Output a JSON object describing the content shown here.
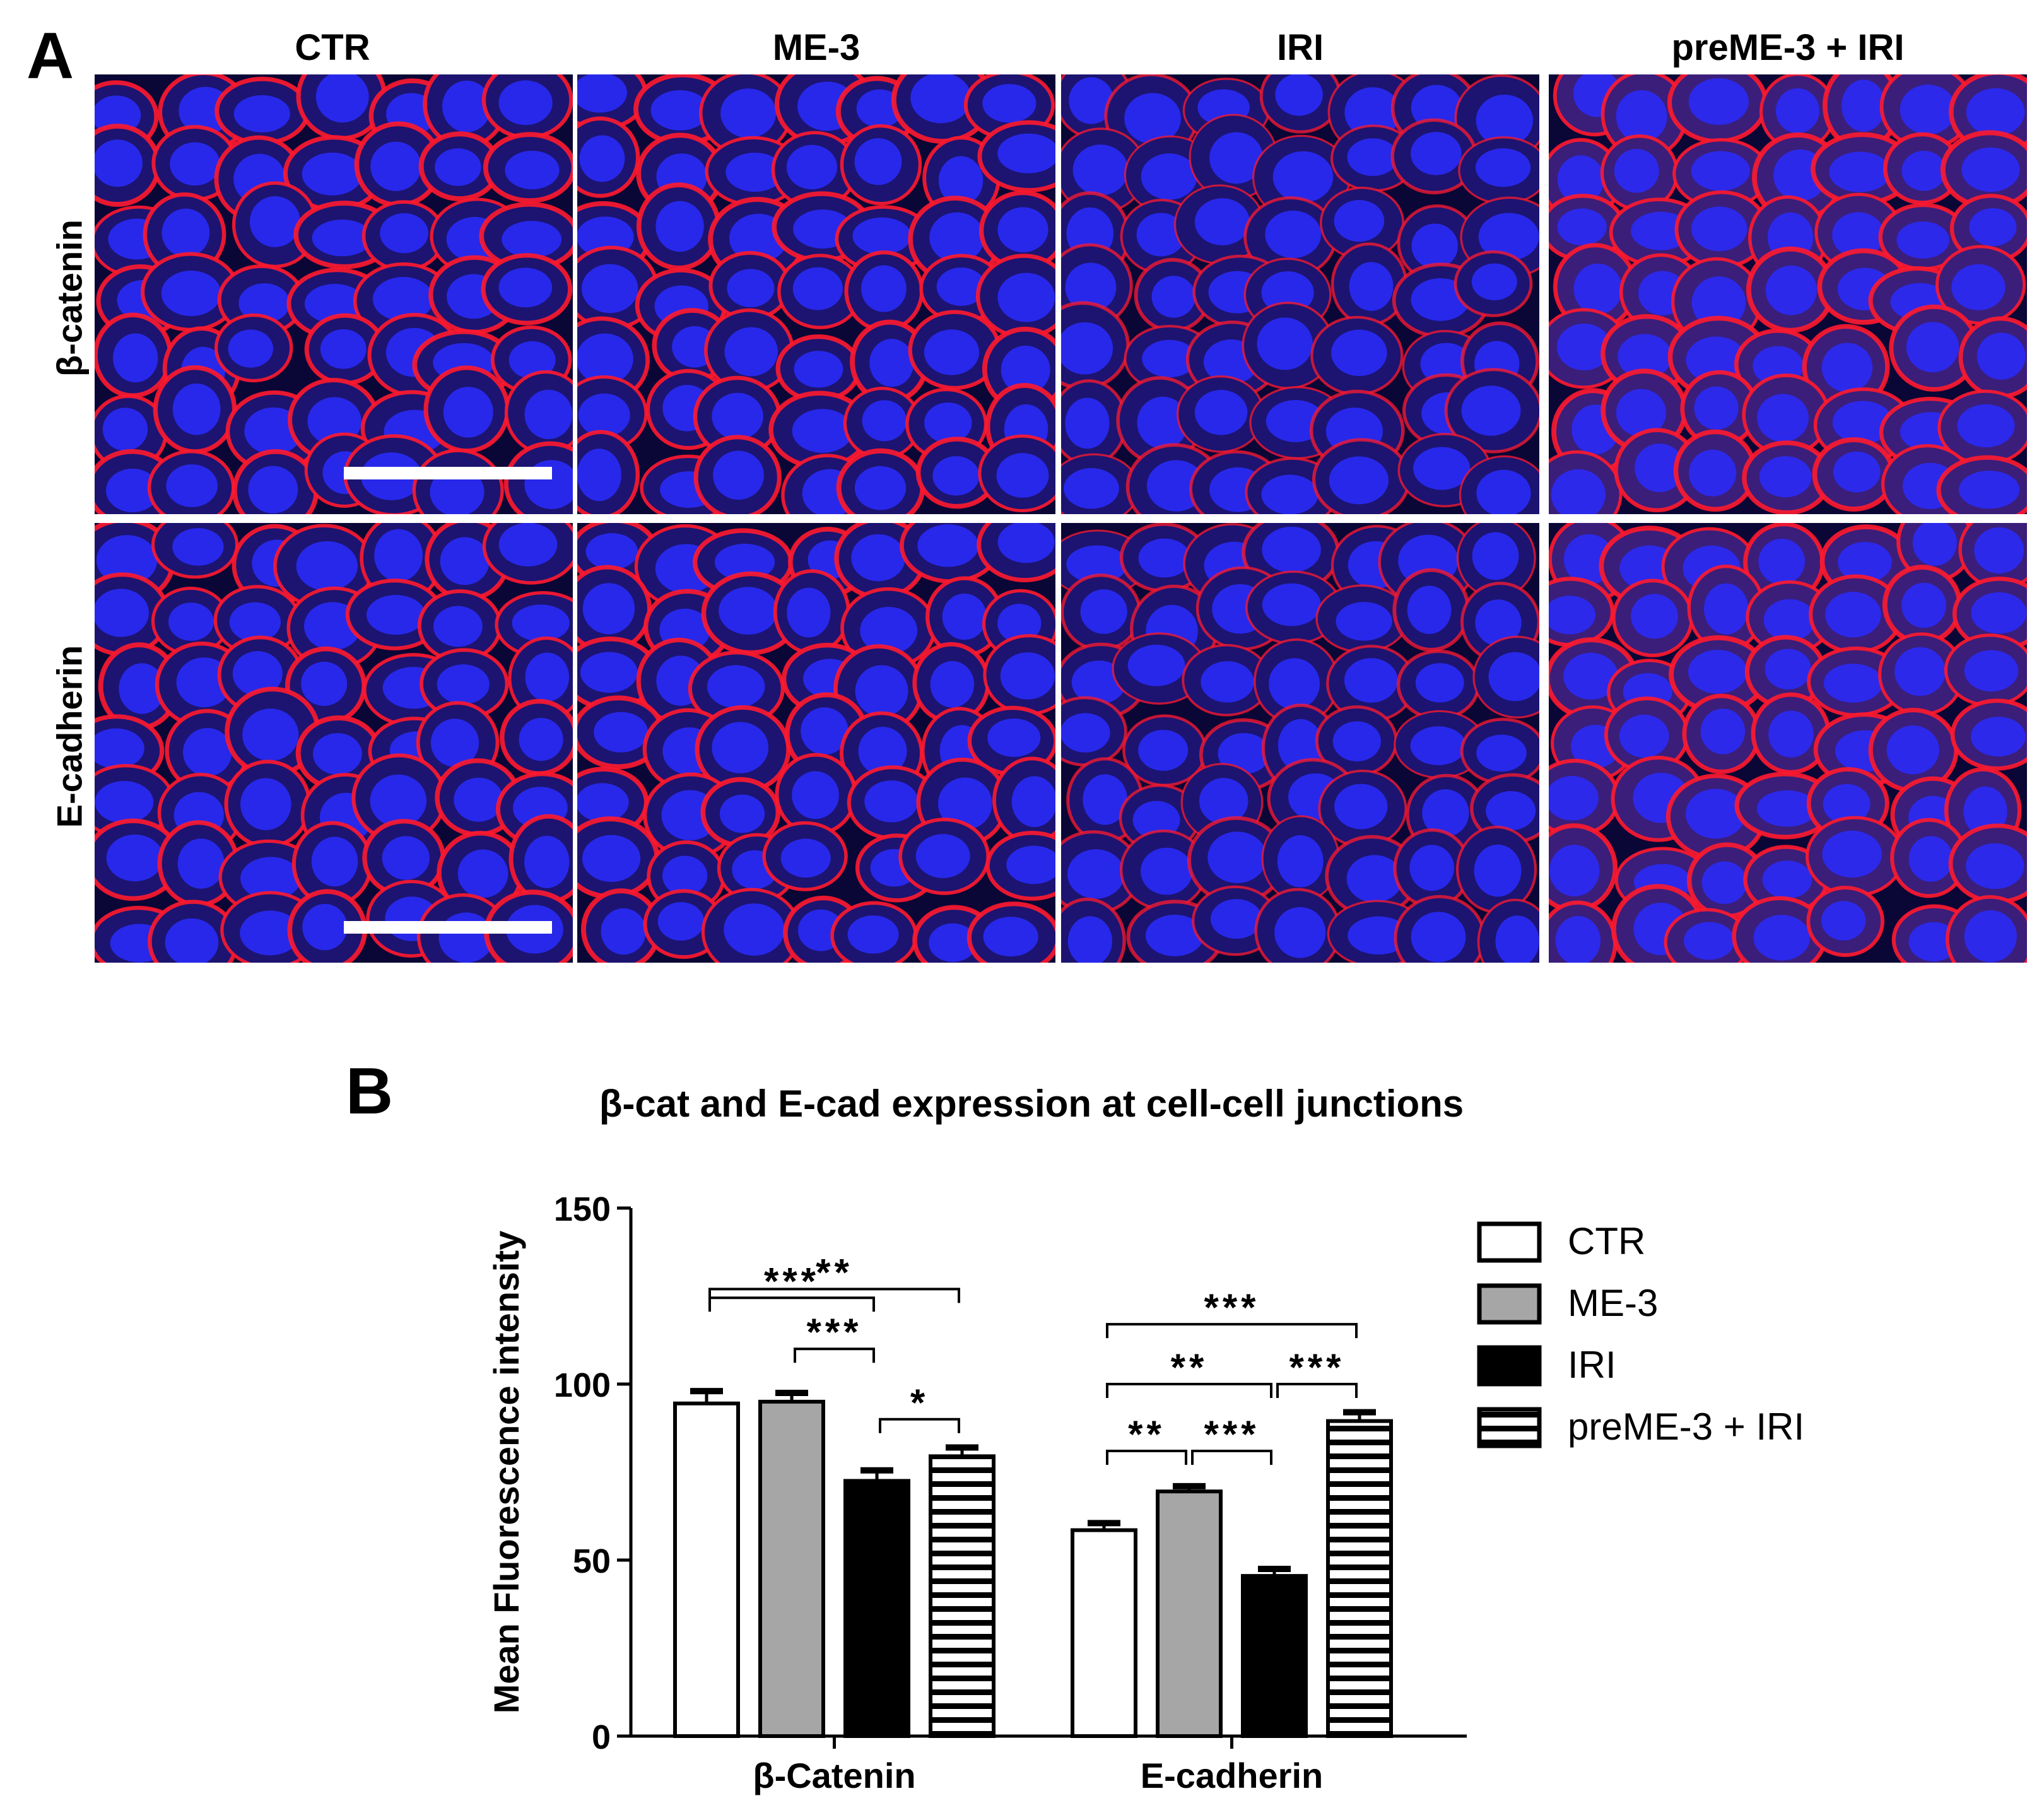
{
  "panel_a": {
    "letter": "A",
    "columns": [
      "CTR",
      "ME-3",
      "IRI",
      "preME-3 + IRI"
    ],
    "rows": [
      "β-catenin",
      "E-cadherin"
    ],
    "stain_colors": {
      "membrane": "#ff1a2e",
      "nucleus": "#2a2cff",
      "background": "#0a0636"
    }
  },
  "panel_b": {
    "letter": "B"
  },
  "chart_data": {
    "type": "bar",
    "title": "β-cat and E-cad expression at cell-cell junctions",
    "ylabel": "Mean Fluorescence intensity",
    "xlabel": "",
    "ylim": [
      0,
      150
    ],
    "yticks": [
      "0",
      "50",
      "100",
      "150"
    ],
    "categories": [
      "β-Catenin",
      "E-cadherin"
    ],
    "series": [
      {
        "name": "CTR",
        "values": [
          94.5,
          58.5
        ],
        "errors": [
          3.5,
          2.0
        ],
        "fill": "white"
      },
      {
        "name": "ME-3",
        "values": [
          95.0,
          69.5
        ],
        "errors": [
          2.5,
          1.5
        ],
        "fill": "gray"
      },
      {
        "name": "IRI",
        "values": [
          72.5,
          45.5
        ],
        "errors": [
          3.0,
          2.0
        ],
        "fill": "black"
      },
      {
        "name": "preME-3 + IRI",
        "values": [
          79.5,
          89.5
        ],
        "errors": [
          2.5,
          2.5
        ],
        "fill": "hstripes"
      }
    ],
    "significance": [
      {
        "category": 0,
        "from": 0,
        "to": 3,
        "y": 127,
        "label": "**"
      },
      {
        "category": 0,
        "from": 0,
        "to": 2,
        "y": 124.5,
        "label": "***"
      },
      {
        "category": 0,
        "from": 1,
        "to": 2,
        "y": 110,
        "label": "***"
      },
      {
        "category": 0,
        "from": 2,
        "to": 3,
        "y": 90,
        "label": "*"
      },
      {
        "category": 1,
        "from": 0,
        "to": 3,
        "y": 117,
        "label": "***"
      },
      {
        "category": 1,
        "from": 0,
        "to": 2,
        "y": 100,
        "label": "**"
      },
      {
        "category": 1,
        "from": 2,
        "to": 3,
        "y": 100,
        "label": "***"
      },
      {
        "category": 1,
        "from": 0,
        "to": 1,
        "y": 81,
        "label": "**"
      },
      {
        "category": 1,
        "from": 1,
        "to": 2,
        "y": 81,
        "label": "***"
      }
    ],
    "legend_position": "right"
  }
}
